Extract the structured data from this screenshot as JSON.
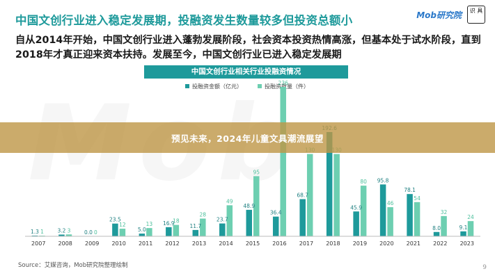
{
  "header": {
    "headline": "中国文创行业进入稳定发展期，投融资发生数量较多但投资总额小",
    "brand_text": "Mob研究院",
    "brand_logo_text": "识 具"
  },
  "intro": {
    "text": "自从2014年开始，中国文创行业进入蓬勃发展阶段，社会资本投资热情高涨，但基本处于试水阶段，直到2018年才真正迎来资本扶持。发展至今，中国文创行业已进入稳定发展期"
  },
  "overlay": {
    "text": "预见未来，2024年儿童文具潮流展望"
  },
  "footer": {
    "source": "Source：艾媒咨询，Mob研究院整理绘制",
    "page_number": "9"
  },
  "colors": {
    "amount": "#1e9a9b",
    "count": "#6dcfb1",
    "title_bar": "#1e9a9b",
    "headline": "#1e9a9b"
  },
  "chart_data": {
    "type": "bar",
    "title": "中国文创行业相关行业投融资情况",
    "categories": [
      "2007",
      "2008",
      "2009",
      "2010",
      "2011",
      "2012",
      "2013",
      "2014",
      "2015",
      "2016",
      "2017",
      "2018",
      "2019",
      "2020",
      "2021",
      "2022",
      "2023"
    ],
    "series": [
      {
        "name": "投融资金额（亿元）",
        "values": [
          1.3,
          3.2,
          0.0,
          23.5,
          5.0,
          16.9,
          11.7,
          23.7,
          48.9,
          36.4,
          68.7,
          192.6,
          45.9,
          95.8,
          78.1,
          8.0,
          9.1
        ]
      },
      {
        "name": "投融资数量（件）",
        "values": [
          1,
          3,
          0,
          12,
          13,
          18,
          28,
          49,
          95,
          236,
          130,
          130,
          80,
          46,
          54,
          32,
          24
        ]
      }
    ],
    "value_labels": [
      [
        "1.3",
        "3.2",
        "0.0",
        "23.5",
        "5.0",
        "16.9",
        "11.7",
        "23.7",
        "48.9",
        "36.4",
        "68.7",
        "192.6",
        "45.9",
        "95.8",
        "78.1",
        "8.0",
        "9.1"
      ],
      [
        "1",
        "3",
        "0",
        "12",
        "13",
        "18",
        "28",
        "49",
        "95",
        "236",
        "130",
        "130",
        "80",
        "46",
        "54",
        "32",
        "24"
      ]
    ],
    "legend_position": "top-center",
    "grid": false
  }
}
